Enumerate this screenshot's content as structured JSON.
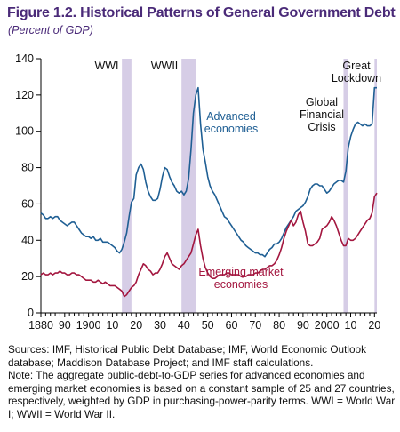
{
  "figure": {
    "title": "Figure 1.2. Historical Patterns of General Government Debt",
    "subtitle": "(Percent of GDP)"
  },
  "colors": {
    "advanced": "#1f5f94",
    "emerging": "#a3163f",
    "shade": "#d6cde6",
    "title": "#4a2a78"
  },
  "chart_data": {
    "type": "line",
    "title": "Figure 1.2. Historical Patterns of General Government Debt",
    "ylabel": "(Percent of GDP)",
    "xlim": [
      1880,
      2021
    ],
    "ylim": [
      0,
      140
    ],
    "yticks": [
      0,
      20,
      40,
      60,
      80,
      100,
      120,
      140
    ],
    "xticks": [
      {
        "value": 1880,
        "label": "1880"
      },
      {
        "value": 1890,
        "label": "90"
      },
      {
        "value": 1900,
        "label": "1900"
      },
      {
        "value": 1910,
        "label": "10"
      },
      {
        "value": 1920,
        "label": "20"
      },
      {
        "value": 1930,
        "label": "30"
      },
      {
        "value": 1940,
        "label": "40"
      },
      {
        "value": 1950,
        "label": "50"
      },
      {
        "value": 1960,
        "label": "60"
      },
      {
        "value": 1970,
        "label": "70"
      },
      {
        "value": 1980,
        "label": "80"
      },
      {
        "value": 1990,
        "label": "90"
      },
      {
        "value": 2000,
        "label": "2000"
      },
      {
        "value": 2010,
        "label": "10"
      },
      {
        "value": 2020,
        "label": "20"
      }
    ],
    "shaded_periods": [
      {
        "label": "WWI",
        "start": 1914,
        "end": 1918
      },
      {
        "label": "WWII",
        "start": 1939,
        "end": 1945
      },
      {
        "label": "Global Financial Crisis",
        "start": 2007,
        "end": 2009
      },
      {
        "label": "Great Lockdown",
        "start": 2020,
        "end": 2021
      }
    ],
    "annotations": {
      "wwi": "WWI",
      "wwii": "WWII",
      "gfc": [
        "Global",
        "Financial",
        "Crisis"
      ],
      "lockdown": [
        "Great",
        "Lockdown"
      ]
    },
    "series": [
      {
        "name": "Advanced economies",
        "label_lines": [
          "Advanced",
          "economies"
        ],
        "color": "#1f5f94",
        "points": [
          [
            1880,
            55
          ],
          [
            1881,
            54
          ],
          [
            1882,
            52
          ],
          [
            1883,
            52
          ],
          [
            1884,
            53
          ],
          [
            1885,
            52
          ],
          [
            1886,
            53
          ],
          [
            1887,
            53
          ],
          [
            1888,
            51
          ],
          [
            1889,
            50
          ],
          [
            1890,
            49
          ],
          [
            1891,
            48
          ],
          [
            1892,
            49
          ],
          [
            1893,
            50
          ],
          [
            1894,
            50
          ],
          [
            1895,
            48
          ],
          [
            1896,
            46
          ],
          [
            1897,
            44
          ],
          [
            1898,
            43
          ],
          [
            1899,
            42
          ],
          [
            1900,
            42
          ],
          [
            1901,
            41
          ],
          [
            1902,
            42
          ],
          [
            1903,
            40
          ],
          [
            1904,
            40
          ],
          [
            1905,
            41
          ],
          [
            1906,
            39
          ],
          [
            1907,
            39
          ],
          [
            1908,
            39
          ],
          [
            1909,
            38
          ],
          [
            1910,
            37
          ],
          [
            1911,
            36
          ],
          [
            1912,
            34
          ],
          [
            1913,
            33
          ],
          [
            1914,
            35
          ],
          [
            1915,
            39
          ],
          [
            1916,
            44
          ],
          [
            1917,
            53
          ],
          [
            1918,
            61
          ],
          [
            1919,
            63
          ],
          [
            1920,
            76
          ],
          [
            1921,
            80
          ],
          [
            1922,
            82
          ],
          [
            1923,
            79
          ],
          [
            1924,
            72
          ],
          [
            1925,
            67
          ],
          [
            1926,
            64
          ],
          [
            1927,
            62
          ],
          [
            1928,
            62
          ],
          [
            1929,
            63
          ],
          [
            1930,
            68
          ],
          [
            1931,
            75
          ],
          [
            1932,
            80
          ],
          [
            1933,
            79
          ],
          [
            1934,
            75
          ],
          [
            1935,
            72
          ],
          [
            1936,
            70
          ],
          [
            1937,
            67
          ],
          [
            1938,
            66
          ],
          [
            1939,
            67
          ],
          [
            1940,
            65
          ],
          [
            1941,
            67
          ],
          [
            1942,
            74
          ],
          [
            1943,
            90
          ],
          [
            1944,
            110
          ],
          [
            1945,
            120
          ],
          [
            1946,
            124
          ],
          [
            1947,
            104
          ],
          [
            1948,
            90
          ],
          [
            1949,
            83
          ],
          [
            1950,
            75
          ],
          [
            1951,
            70
          ],
          [
            1952,
            67
          ],
          [
            1953,
            65
          ],
          [
            1954,
            62
          ],
          [
            1955,
            59
          ],
          [
            1956,
            56
          ],
          [
            1957,
            53
          ],
          [
            1958,
            52
          ],
          [
            1959,
            50
          ],
          [
            1960,
            48
          ],
          [
            1961,
            46
          ],
          [
            1962,
            44
          ],
          [
            1963,
            42
          ],
          [
            1964,
            40
          ],
          [
            1965,
            39
          ],
          [
            1966,
            37
          ],
          [
            1967,
            36
          ],
          [
            1968,
            35
          ],
          [
            1969,
            34
          ],
          [
            1970,
            33
          ],
          [
            1971,
            33
          ],
          [
            1972,
            32
          ],
          [
            1973,
            32
          ],
          [
            1974,
            31
          ],
          [
            1975,
            33
          ],
          [
            1976,
            35
          ],
          [
            1977,
            36
          ],
          [
            1978,
            38
          ],
          [
            1979,
            38
          ],
          [
            1980,
            39
          ],
          [
            1981,
            41
          ],
          [
            1982,
            44
          ],
          [
            1983,
            47
          ],
          [
            1984,
            49
          ],
          [
            1985,
            51
          ],
          [
            1986,
            53
          ],
          [
            1987,
            56
          ],
          [
            1988,
            57
          ],
          [
            1989,
            58
          ],
          [
            1990,
            59
          ],
          [
            1991,
            61
          ],
          [
            1992,
            64
          ],
          [
            1993,
            68
          ],
          [
            1994,
            70
          ],
          [
            1995,
            71
          ],
          [
            1996,
            71
          ],
          [
            1997,
            70
          ],
          [
            1998,
            70
          ],
          [
            1999,
            68
          ],
          [
            2000,
            66
          ],
          [
            2001,
            67
          ],
          [
            2002,
            69
          ],
          [
            2003,
            71
          ],
          [
            2004,
            72
          ],
          [
            2005,
            73
          ],
          [
            2006,
            73
          ],
          [
            2007,
            72
          ],
          [
            2008,
            78
          ],
          [
            2009,
            91
          ],
          [
            2010,
            97
          ],
          [
            2011,
            101
          ],
          [
            2012,
            104
          ],
          [
            2013,
            105
          ],
          [
            2014,
            104
          ],
          [
            2015,
            103
          ],
          [
            2016,
            104
          ],
          [
            2017,
            103
          ],
          [
            2018,
            103
          ],
          [
            2019,
            104
          ],
          [
            2020,
            124
          ],
          [
            2021,
            124
          ]
        ]
      },
      {
        "name": "Emerging market economies",
        "label_lines": [
          "Emerging market",
          "economies"
        ],
        "color": "#a3163f",
        "points": [
          [
            1880,
            21
          ],
          [
            1881,
            22
          ],
          [
            1882,
            21
          ],
          [
            1883,
            21
          ],
          [
            1884,
            22
          ],
          [
            1885,
            21
          ],
          [
            1886,
            22
          ],
          [
            1887,
            22
          ],
          [
            1888,
            23
          ],
          [
            1889,
            22
          ],
          [
            1890,
            22
          ],
          [
            1891,
            21
          ],
          [
            1892,
            21
          ],
          [
            1893,
            22
          ],
          [
            1894,
            22
          ],
          [
            1895,
            21
          ],
          [
            1896,
            21
          ],
          [
            1897,
            20
          ],
          [
            1898,
            19
          ],
          [
            1899,
            18
          ],
          [
            1900,
            18
          ],
          [
            1901,
            18
          ],
          [
            1902,
            17
          ],
          [
            1903,
            17
          ],
          [
            1904,
            18
          ],
          [
            1905,
            17
          ],
          [
            1906,
            16
          ],
          [
            1907,
            17
          ],
          [
            1908,
            16
          ],
          [
            1909,
            15
          ],
          [
            1910,
            15
          ],
          [
            1911,
            15
          ],
          [
            1912,
            14
          ],
          [
            1913,
            13
          ],
          [
            1914,
            12
          ],
          [
            1915,
            9
          ],
          [
            1916,
            10
          ],
          [
            1917,
            12
          ],
          [
            1918,
            14
          ],
          [
            1919,
            15
          ],
          [
            1920,
            17
          ],
          [
            1921,
            21
          ],
          [
            1922,
            24
          ],
          [
            1923,
            27
          ],
          [
            1924,
            26
          ],
          [
            1925,
            24
          ],
          [
            1926,
            23
          ],
          [
            1927,
            21
          ],
          [
            1928,
            22
          ],
          [
            1929,
            22
          ],
          [
            1930,
            24
          ],
          [
            1931,
            27
          ],
          [
            1932,
            31
          ],
          [
            1933,
            33
          ],
          [
            1934,
            30
          ],
          [
            1935,
            27
          ],
          [
            1936,
            26
          ],
          [
            1937,
            25
          ],
          [
            1938,
            24
          ],
          [
            1939,
            26
          ],
          [
            1940,
            27
          ],
          [
            1941,
            29
          ],
          [
            1942,
            31
          ],
          [
            1943,
            33
          ],
          [
            1944,
            38
          ],
          [
            1945,
            43
          ],
          [
            1946,
            46
          ],
          [
            1947,
            37
          ],
          [
            1948,
            30
          ],
          [
            1949,
            25
          ],
          [
            1950,
            22
          ],
          [
            1951,
            20
          ],
          [
            1952,
            19
          ],
          [
            1953,
            19
          ],
          [
            1954,
            20
          ],
          [
            1955,
            21
          ],
          [
            1956,
            21
          ],
          [
            1957,
            21
          ],
          [
            1958,
            22
          ],
          [
            1959,
            22
          ],
          [
            1960,
            21
          ],
          [
            1961,
            21
          ],
          [
            1962,
            21
          ],
          [
            1963,
            21
          ],
          [
            1964,
            20
          ],
          [
            1965,
            20
          ],
          [
            1966,
            20
          ],
          [
            1967,
            21
          ],
          [
            1968,
            21
          ],
          [
            1969,
            21
          ],
          [
            1970,
            22
          ],
          [
            1971,
            22
          ],
          [
            1972,
            23
          ],
          [
            1973,
            24
          ],
          [
            1974,
            24
          ],
          [
            1975,
            25
          ],
          [
            1976,
            26
          ],
          [
            1977,
            26
          ],
          [
            1978,
            27
          ],
          [
            1979,
            29
          ],
          [
            1980,
            32
          ],
          [
            1981,
            36
          ],
          [
            1982,
            41
          ],
          [
            1983,
            45
          ],
          [
            1984,
            48
          ],
          [
            1985,
            51
          ],
          [
            1986,
            48
          ],
          [
            1987,
            50
          ],
          [
            1988,
            54
          ],
          [
            1989,
            56
          ],
          [
            1990,
            50
          ],
          [
            1991,
            45
          ],
          [
            1992,
            38
          ],
          [
            1993,
            37
          ],
          [
            1994,
            37
          ],
          [
            1995,
            38
          ],
          [
            1996,
            39
          ],
          [
            1997,
            41
          ],
          [
            1998,
            46
          ],
          [
            1999,
            47
          ],
          [
            2000,
            48
          ],
          [
            2001,
            50
          ],
          [
            2002,
            53
          ],
          [
            2003,
            51
          ],
          [
            2004,
            48
          ],
          [
            2005,
            44
          ],
          [
            2006,
            40
          ],
          [
            2007,
            37
          ],
          [
            2008,
            37
          ],
          [
            2009,
            41
          ],
          [
            2010,
            40
          ],
          [
            2011,
            40
          ],
          [
            2012,
            41
          ],
          [
            2013,
            43
          ],
          [
            2014,
            45
          ],
          [
            2015,
            47
          ],
          [
            2016,
            49
          ],
          [
            2017,
            51
          ],
          [
            2018,
            52
          ],
          [
            2019,
            55
          ],
          [
            2020,
            64
          ],
          [
            2021,
            66
          ]
        ]
      }
    ]
  },
  "notes": {
    "sources": "Sources: IMF, Historical Public Debt Database; IMF, World Economic Outlook database; Maddison Database Project; and IMF staff calculations.",
    "note": "Note: The aggregate public-debt-to-GDP series for advanced economies and emerging market economies is based on a constant sample of 25 and 27 countries, respectively, weighted by GDP in purchasing-power-parity terms. WWI = World War I; WWII = World War II."
  }
}
